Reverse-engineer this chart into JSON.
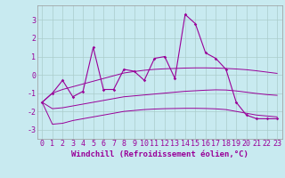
{
  "xlabel": "Windchill (Refroidissement éolien,°C)",
  "background_color": "#c8eaf0",
  "line_color": "#990099",
  "grid_color": "#aacccc",
  "x": [
    0,
    1,
    2,
    3,
    4,
    5,
    6,
    7,
    8,
    9,
    10,
    11,
    12,
    13,
    14,
    15,
    16,
    17,
    18,
    19,
    20,
    21,
    22,
    23
  ],
  "y_main": [
    -1.5,
    -1.0,
    -0.3,
    -1.2,
    -0.9,
    1.5,
    -0.8,
    -0.8,
    0.3,
    0.2,
    -0.3,
    0.9,
    1.0,
    -0.2,
    3.3,
    2.8,
    1.2,
    0.9,
    0.3,
    -1.5,
    -2.2,
    -2.4,
    -2.4,
    -2.4
  ],
  "y_smooth_upper": [
    -1.5,
    -1.0,
    -0.8,
    -0.65,
    -0.5,
    -0.35,
    -0.2,
    -0.05,
    0.1,
    0.18,
    0.25,
    0.3,
    0.33,
    0.35,
    0.37,
    0.38,
    0.38,
    0.37,
    0.35,
    0.32,
    0.28,
    0.22,
    0.15,
    0.08
  ],
  "y_smooth_lower": [
    -1.5,
    -2.7,
    -2.65,
    -2.5,
    -2.4,
    -2.3,
    -2.2,
    -2.1,
    -2.0,
    -1.95,
    -1.9,
    -1.87,
    -1.85,
    -1.84,
    -1.83,
    -1.83,
    -1.84,
    -1.86,
    -1.9,
    -2.0,
    -2.1,
    -2.2,
    -2.25,
    -2.3
  ],
  "y_mid": [
    -1.5,
    -1.85,
    -1.8,
    -1.7,
    -1.6,
    -1.5,
    -1.4,
    -1.3,
    -1.2,
    -1.15,
    -1.1,
    -1.05,
    -1.0,
    -0.95,
    -0.9,
    -0.87,
    -0.84,
    -0.82,
    -0.83,
    -0.88,
    -0.95,
    -1.02,
    -1.08,
    -1.12
  ],
  "ylim": [
    -3.5,
    3.8
  ],
  "xlim": [
    -0.5,
    23.5
  ],
  "yticks": [
    -3,
    -2,
    -1,
    0,
    1,
    2,
    3
  ],
  "xticks": [
    0,
    1,
    2,
    3,
    4,
    5,
    6,
    7,
    8,
    9,
    10,
    11,
    12,
    13,
    14,
    15,
    16,
    17,
    18,
    19,
    20,
    21,
    22,
    23
  ],
  "xlabel_fontsize": 6.5,
  "tick_fontsize": 6.0,
  "figwidth": 3.2,
  "figheight": 2.0,
  "dpi": 100
}
